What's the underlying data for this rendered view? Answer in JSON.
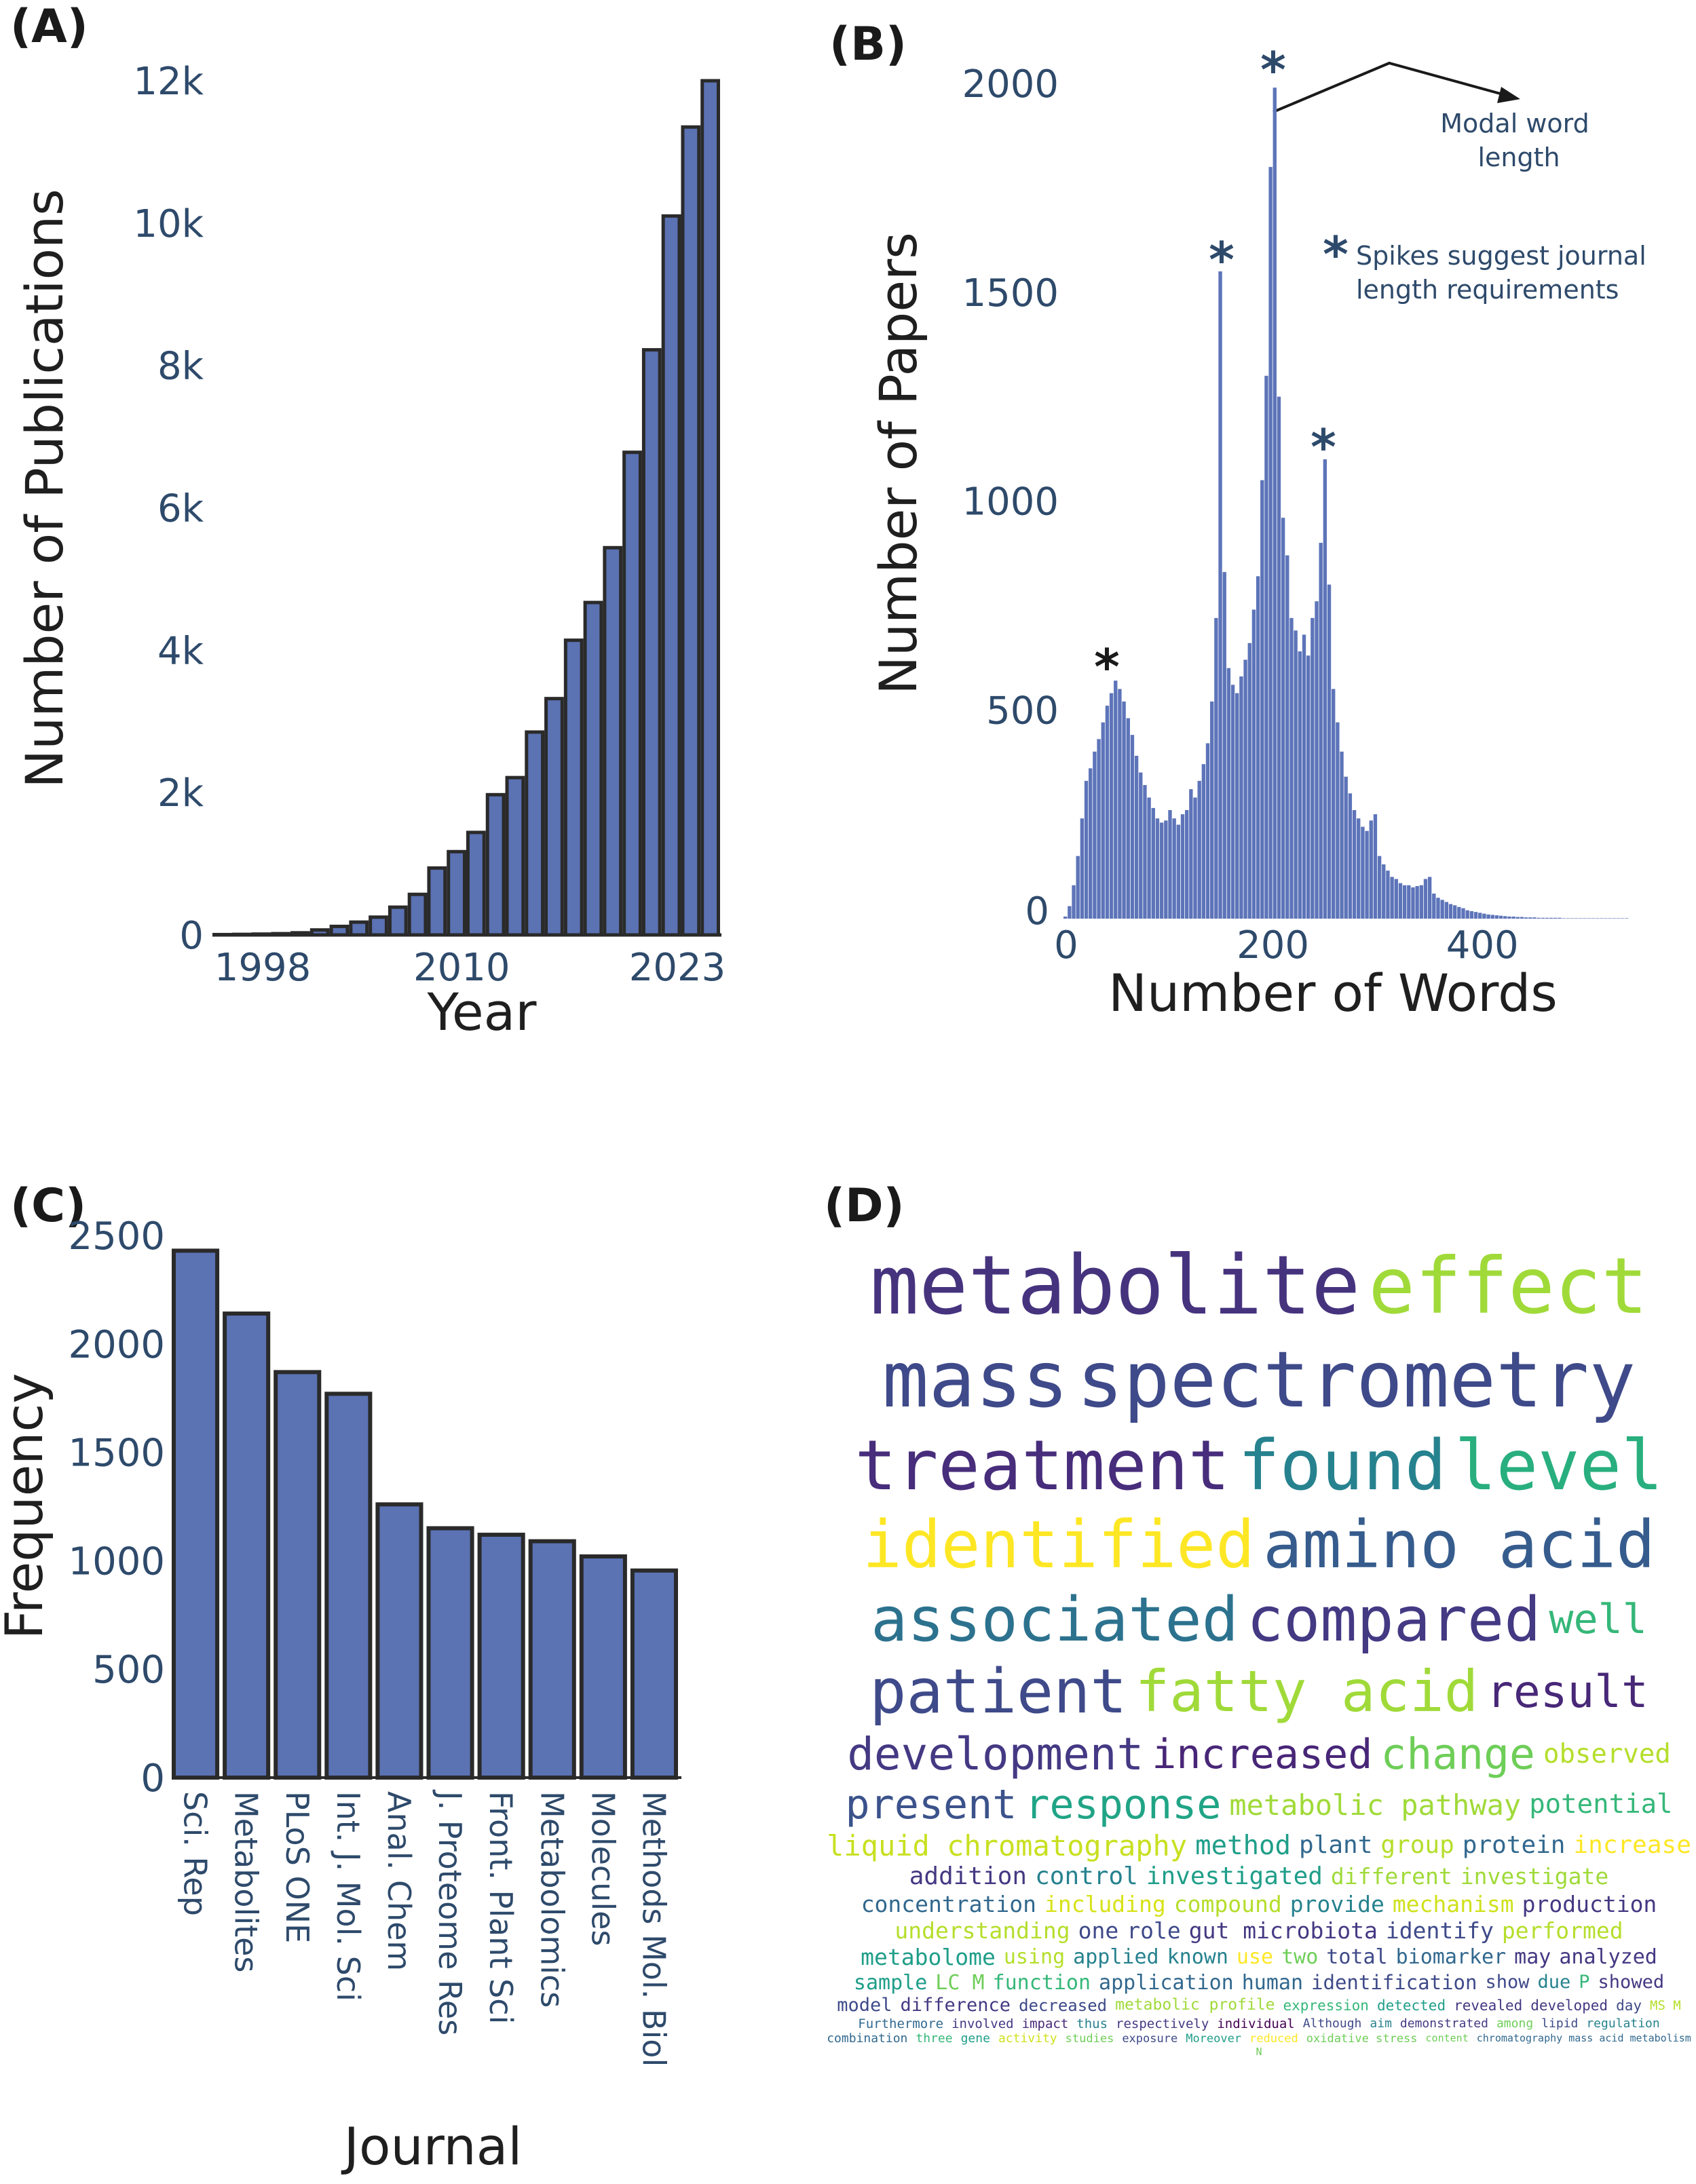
{
  "panels": {
    "a": {
      "label": "(A)"
    },
    "b": {
      "label": "(B)",
      "annotation_modal_line1": "Modal word",
      "annotation_modal_line2": "length",
      "annotation_spikes_line1": "Spikes suggest journal",
      "annotation_spikes_line2": "length requirements",
      "star_symbol": "*"
    },
    "c": {
      "label": "(C)"
    },
    "d": {
      "label": "(D)"
    }
  },
  "colors": {
    "bar_fill": "#5b72b3",
    "bar_outline": "#2a2a2a",
    "hist_fill": "#5d74b9",
    "tick_text": "#2e4a6b"
  },
  "chart_data": [
    {
      "type": "bar",
      "title": "",
      "xlabel": "Year",
      "ylabel": "Number of Publications",
      "categories": [
        1999,
        2000,
        2001,
        2002,
        2003,
        2004,
        2005,
        2006,
        2007,
        2008,
        2009,
        2010,
        2011,
        2012,
        2013,
        2014,
        2015,
        2016,
        2017,
        2018,
        2019,
        2020,
        2021,
        2022,
        2023,
        2024
      ],
      "values": [
        5,
        8,
        12,
        18,
        30,
        70,
        120,
        180,
        250,
        390,
        570,
        940,
        1170,
        1440,
        1970,
        2210,
        2850,
        3320,
        4140,
        4670,
        5440,
        6780,
        8220,
        10100,
        11350,
        12000
      ],
      "xticks": [
        1998,
        2010,
        2023
      ],
      "xtick_labels": [
        "1998",
        "2010",
        "2023"
      ],
      "yticks": [
        0,
        2000,
        4000,
        6000,
        8000,
        10000,
        12000
      ],
      "ytick_labels": [
        "0",
        "2k",
        "4k",
        "6k",
        "8k",
        "10k",
        "12k"
      ],
      "ylim": [
        0,
        12000
      ]
    },
    {
      "type": "bar",
      "subtype": "histogram",
      "xlabel": "Number of Words",
      "ylabel": "Number of Papers",
      "bin_start": 0,
      "bin_width": 4,
      "values": [
        5,
        30,
        80,
        150,
        240,
        330,
        360,
        400,
        430,
        470,
        510,
        540,
        570,
        550,
        520,
        480,
        440,
        390,
        350,
        320,
        290,
        265,
        240,
        230,
        235,
        260,
        240,
        225,
        250,
        260,
        310,
        290,
        330,
        370,
        420,
        520,
        720,
        1550,
        830,
        600,
        560,
        540,
        580,
        620,
        660,
        740,
        820,
        1050,
        1300,
        1800,
        1990,
        1250,
        960,
        870,
        720,
        690,
        640,
        680,
        630,
        720,
        760,
        900,
        1100,
        800,
        550,
        470,
        400,
        340,
        300,
        260,
        240,
        220,
        210,
        235,
        250,
        150,
        130,
        115,
        100,
        95,
        85,
        80,
        80,
        75,
        78,
        80,
        95,
        100,
        60,
        50,
        45,
        40,
        35,
        32,
        28,
        25,
        20,
        18,
        16,
        14,
        12,
        10,
        9,
        8,
        7,
        6,
        5,
        5,
        4,
        4,
        3,
        3,
        3,
        2,
        2,
        2,
        2,
        2,
        2,
        1,
        1,
        1,
        1,
        1,
        1,
        1,
        1,
        1,
        1,
        1,
        1,
        1,
        1,
        1,
        1
      ],
      "xticks": [
        0,
        200,
        400
      ],
      "xtick_labels": [
        "0",
        "200",
        "400"
      ],
      "yticks": [
        0,
        500,
        1000,
        1500,
        2000
      ],
      "ytick_labels": [
        "0",
        "500",
        "1000",
        "1500",
        "2000"
      ],
      "xlim": [
        0,
        540
      ],
      "ylim": [
        0,
        2000
      ],
      "spikes": [
        50,
        150,
        200,
        250
      ],
      "modal_value": 200
    },
    {
      "type": "bar",
      "xlabel": "Journal",
      "ylabel": "Frequency",
      "categories": [
        "Sci. Rep",
        "Metabolites",
        "PLoS ONE",
        "Int. J. Mol. Sci",
        "Anal. Chem",
        "J. Proteome Res",
        "Front. Plant Sci",
        "Metabolomics",
        "Molecules",
        "Methods Mol. Biol"
      ],
      "values": [
        2430,
        2140,
        1870,
        1770,
        1260,
        1150,
        1120,
        1090,
        1020,
        955
      ],
      "yticks": [
        0,
        500,
        1000,
        1500,
        2000,
        2500
      ],
      "ytick_labels": [
        "0",
        "500",
        "1000",
        "1500",
        "2000",
        "2500"
      ],
      "ylim": [
        0,
        2500
      ]
    }
  ],
  "wordcloud": {
    "words": [
      {
        "text": "liquid chromatography",
        "color": "#c8e020"
      },
      {
        "text": "metabolic profile",
        "color": "#a0da39"
      },
      {
        "text": "different",
        "color": "#a0da39"
      },
      {
        "text": "expression",
        "color": "#35b779"
      },
      {
        "text": "using",
        "color": "#b5de2b"
      },
      {
        "text": "mass",
        "color": "#3e4a89"
      },
      {
        "text": "spectrometry",
        "color": "#3e4a89"
      },
      {
        "text": "Although",
        "color": "#3e4a89"
      },
      {
        "text": "content",
        "color": "#6ece58"
      },
      {
        "text": "studies",
        "color": "#6ece58"
      },
      {
        "text": "exposure",
        "color": "#3e4a89"
      },
      {
        "text": "well",
        "color": "#35b779"
      },
      {
        "text": "MS M",
        "color": "#b5de2b"
      },
      {
        "text": "observed",
        "color": "#b5de2b"
      },
      {
        "text": "identification",
        "color": "#3e4a89"
      },
      {
        "text": "aim",
        "color": "#26828e"
      },
      {
        "text": "Furthermore",
        "color": "#31688e"
      },
      {
        "text": "compared",
        "color": "#443983"
      },
      {
        "text": "plant",
        "color": "#31688e"
      },
      {
        "text": "show",
        "color": "#3e4a89"
      },
      {
        "text": "applied",
        "color": "#26828e"
      },
      {
        "text": "investigate",
        "color": "#a0da39"
      },
      {
        "text": "due",
        "color": "#26828e"
      },
      {
        "text": "found",
        "color": "#26828e"
      },
      {
        "text": "effect",
        "color": "#a0da39"
      },
      {
        "text": "known",
        "color": "#26828e"
      },
      {
        "text": "potential",
        "color": "#35b779"
      },
      {
        "text": "increased",
        "color": "#482677"
      },
      {
        "text": "use",
        "color": "#fde725"
      },
      {
        "text": "P",
        "color": "#35b779"
      },
      {
        "text": "two",
        "color": "#6ece58"
      },
      {
        "text": "involved",
        "color": "#443983"
      },
      {
        "text": "showed",
        "color": "#443983"
      },
      {
        "text": "group",
        "color": "#b5de2b"
      },
      {
        "text": "demonstrated",
        "color": "#443983"
      },
      {
        "text": "total",
        "color": "#3e4a89"
      },
      {
        "text": "biomarker",
        "color": "#31688e"
      },
      {
        "text": "patient",
        "color": "#3e4a89"
      },
      {
        "text": "impact",
        "color": "#482878"
      },
      {
        "text": "thus",
        "color": "#26828e"
      },
      {
        "text": "among",
        "color": "#6ece58"
      },
      {
        "text": "lipid",
        "color": "#3e4a89"
      },
      {
        "text": "identified",
        "color": "#fde725"
      },
      {
        "text": "regulation",
        "color": "#26828e"
      },
      {
        "text": "fatty acid",
        "color": "#a0da39"
      },
      {
        "text": "chromatography mass acid metabolism",
        "color": "#31688e"
      },
      {
        "text": "development",
        "color": "#443983"
      },
      {
        "text": "metabolic pathway",
        "color": "#a0da39"
      },
      {
        "text": "method",
        "color": "#1f9e89"
      },
      {
        "text": "protein",
        "color": "#31688e"
      },
      {
        "text": "may",
        "color": "#443983"
      },
      {
        "text": "detected",
        "color": "#1f9e89"
      },
      {
        "text": "analyzed",
        "color": "#443983"
      },
      {
        "text": "respectively",
        "color": "#443983"
      },
      {
        "text": "combination",
        "color": "#31688e"
      },
      {
        "text": "three",
        "color": "#35b779"
      },
      {
        "text": "change",
        "color": "#6ece58"
      },
      {
        "text": "concentration",
        "color": "#31688e"
      },
      {
        "text": "gene",
        "color": "#1f9e89"
      },
      {
        "text": "metabolite",
        "color": "#46337e"
      },
      {
        "text": "including",
        "color": "#d8e219"
      },
      {
        "text": "Moreover",
        "color": "#1f9e89"
      },
      {
        "text": "revealed",
        "color": "#443983"
      },
      {
        "text": "compound",
        "color": "#b5de2b"
      },
      {
        "text": "increase",
        "color": "#fde725"
      },
      {
        "text": "sample",
        "color": "#1f9e89"
      },
      {
        "text": "LC M",
        "color": "#6ece58"
      },
      {
        "text": "individual",
        "color": "#440154"
      },
      {
        "text": "addition",
        "color": "#443983"
      },
      {
        "text": "treatment",
        "color": "#472d7b"
      },
      {
        "text": "level",
        "color": "#29af7f"
      },
      {
        "text": "provide",
        "color": "#26828e"
      },
      {
        "text": "developed",
        "color": "#443983"
      },
      {
        "text": "reduced",
        "color": "#fde725"
      },
      {
        "text": "model",
        "color": "#3e4a89"
      },
      {
        "text": "mechanism",
        "color": "#d0e11c"
      },
      {
        "text": "production",
        "color": "#443983"
      },
      {
        "text": "understanding",
        "color": "#b5de2b"
      },
      {
        "text": "control",
        "color": "#26828e"
      },
      {
        "text": "result",
        "color": "#482878"
      },
      {
        "text": "activity",
        "color": "#d0e11c"
      },
      {
        "text": "one",
        "color": "#3e4a89"
      },
      {
        "text": "present",
        "color": "#3b528b"
      },
      {
        "text": "function",
        "color": "#35b779"
      },
      {
        "text": "associated",
        "color": "#2c728e"
      },
      {
        "text": "role",
        "color": "#3e4a89"
      },
      {
        "text": "difference",
        "color": "#443983"
      },
      {
        "text": "application",
        "color": "#31688e"
      },
      {
        "text": "response",
        "color": "#20a486"
      },
      {
        "text": "gut microbiota",
        "color": "#443983"
      },
      {
        "text": "day",
        "color": "#3e4a89"
      },
      {
        "text": "investigated",
        "color": "#1f9e89"
      },
      {
        "text": "oxidative stress",
        "color": "#6ece58"
      },
      {
        "text": "identify",
        "color": "#3e4a89"
      },
      {
        "text": "amino acid",
        "color": "#365c8d"
      },
      {
        "text": "performed",
        "color": "#b5de2b"
      },
      {
        "text": "N",
        "color": "#6ece58"
      },
      {
        "text": "human",
        "color": "#31688e"
      },
      {
        "text": "metabolome",
        "color": "#1f9e89"
      },
      {
        "text": "decreased",
        "color": "#3e4a89"
      }
    ]
  }
}
